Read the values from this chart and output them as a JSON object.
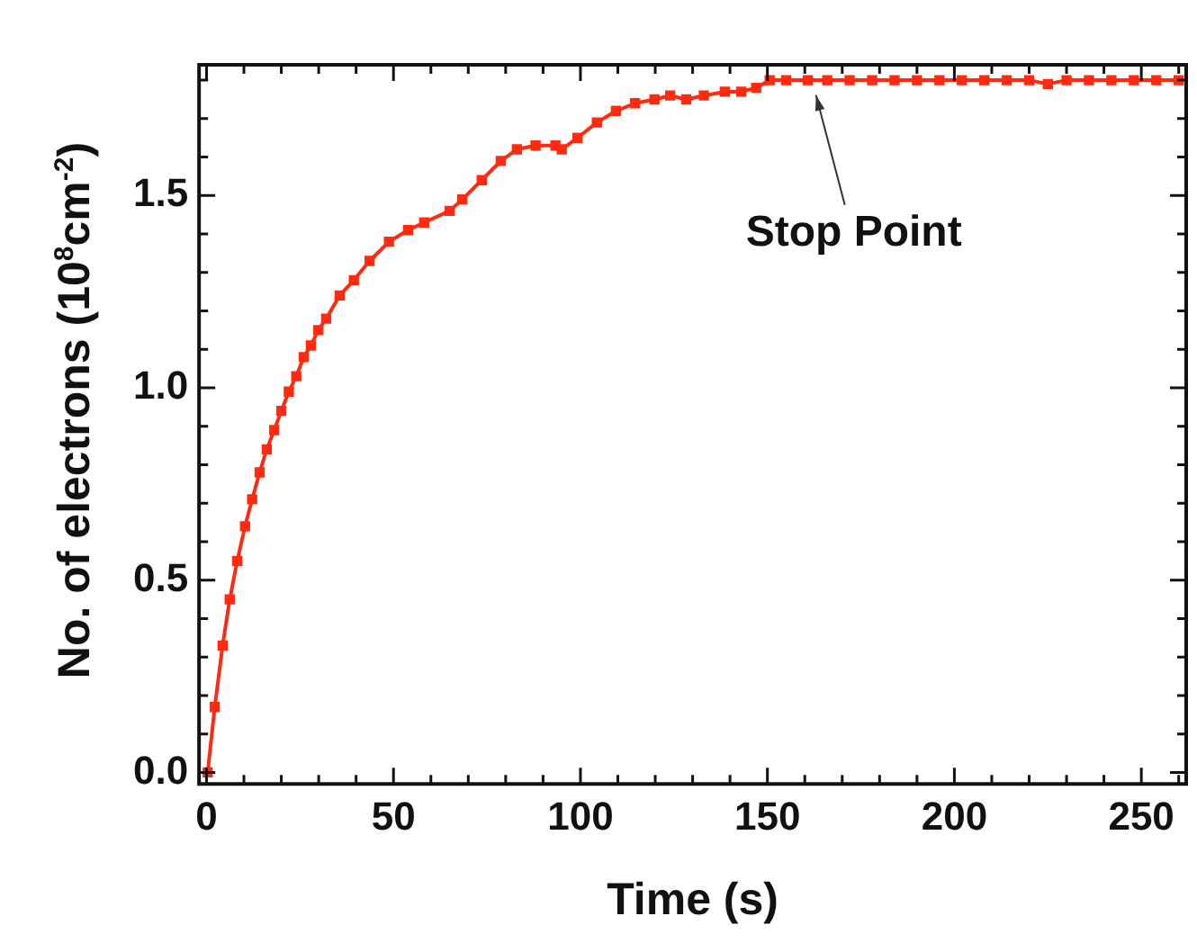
{
  "chart_data": {
    "type": "line",
    "xlabel": "Time (s)",
    "ylabel": "No. of electrons (10$^{8}$cm$^{-2}$)",
    "xlim": [
      -2,
      262
    ],
    "ylim": [
      -0.03,
      1.84
    ],
    "xticks": [
      {
        "value": 0,
        "label": "0"
      },
      {
        "value": 10,
        "label": null
      },
      {
        "value": 20,
        "label": null
      },
      {
        "value": 30,
        "label": null
      },
      {
        "value": 40,
        "label": null
      },
      {
        "value": 50,
        "label": "50"
      },
      {
        "value": 60,
        "label": null
      },
      {
        "value": 70,
        "label": null
      },
      {
        "value": 80,
        "label": null
      },
      {
        "value": 90,
        "label": null
      },
      {
        "value": 100,
        "label": "100"
      },
      {
        "value": 110,
        "label": null
      },
      {
        "value": 120,
        "label": null
      },
      {
        "value": 130,
        "label": null
      },
      {
        "value": 140,
        "label": null
      },
      {
        "value": 150,
        "label": "150"
      },
      {
        "value": 160,
        "label": null
      },
      {
        "value": 170,
        "label": null
      },
      {
        "value": 180,
        "label": null
      },
      {
        "value": 190,
        "label": null
      },
      {
        "value": 200,
        "label": "200"
      },
      {
        "value": 210,
        "label": null
      },
      {
        "value": 220,
        "label": null
      },
      {
        "value": 230,
        "label": null
      },
      {
        "value": 240,
        "label": null
      },
      {
        "value": 250,
        "label": "250"
      },
      {
        "value": 260,
        "label": null
      }
    ],
    "yticks": [
      {
        "value": 0,
        "label": "0.0"
      },
      {
        "value": 0.1,
        "label": null
      },
      {
        "value": 0.2,
        "label": null
      },
      {
        "value": 0.3,
        "label": null
      },
      {
        "value": 0.4,
        "label": null
      },
      {
        "value": 0.5,
        "label": "0.5"
      },
      {
        "value": 0.6,
        "label": null
      },
      {
        "value": 0.7,
        "label": null
      },
      {
        "value": 0.8,
        "label": null
      },
      {
        "value": 0.9,
        "label": null
      },
      {
        "value": 1.0,
        "label": "1.0"
      },
      {
        "value": 1.1,
        "label": null
      },
      {
        "value": 1.2,
        "label": null
      },
      {
        "value": 1.3,
        "label": null
      },
      {
        "value": 1.4,
        "label": null
      },
      {
        "value": 1.5,
        "label": "1.5"
      },
      {
        "value": 1.6,
        "label": null
      },
      {
        "value": 1.7,
        "label": null
      },
      {
        "value": 1.8,
        "label": null
      }
    ],
    "grid": false,
    "legend": false,
    "marker": "square",
    "line_style": "solid",
    "annotations": [
      {
        "text": "Stop Point",
        "x": 163,
        "y": 1.78
      }
    ],
    "series": [
      {
        "color": "#ff2a10",
        "x": [
          0.3,
          2.2,
          4.3,
          6.2,
          8.2,
          10.3,
          12.2,
          14.2,
          16.1,
          18.1,
          20,
          22,
          24,
          26,
          27.9,
          29.9,
          32,
          35.6,
          39.4,
          43.6,
          48.8,
          53.9,
          58.2,
          65,
          68.4,
          73.6,
          78.7,
          83,
          88,
          93.3,
          95,
          99.2,
          104.4,
          109.5,
          114.6,
          119.8,
          124,
          128.3,
          133,
          138.6,
          143,
          147,
          150.6,
          155,
          160.8,
          166,
          172,
          178,
          184,
          190,
          196,
          202,
          208,
          214,
          220,
          225,
          230,
          236,
          242,
          248,
          254,
          260
        ],
        "values": [
          0,
          0.17,
          0.33,
          0.45,
          0.55,
          0.64,
          0.71,
          0.78,
          0.84,
          0.89,
          0.94,
          0.99,
          1.03,
          1.08,
          1.11,
          1.15,
          1.18,
          1.24,
          1.28,
          1.33,
          1.38,
          1.41,
          1.43,
          1.46,
          1.49,
          1.54,
          1.59,
          1.62,
          1.63,
          1.63,
          1.62,
          1.65,
          1.69,
          1.72,
          1.74,
          1.75,
          1.76,
          1.75,
          1.76,
          1.77,
          1.77,
          1.78,
          1.8,
          1.8,
          1.8,
          1.8,
          1.8,
          1.8,
          1.8,
          1.8,
          1.8,
          1.8,
          1.8,
          1.8,
          1.8,
          1.79,
          1.8,
          1.8,
          1.8,
          1.8,
          1.8,
          1.8
        ]
      }
    ]
  }
}
